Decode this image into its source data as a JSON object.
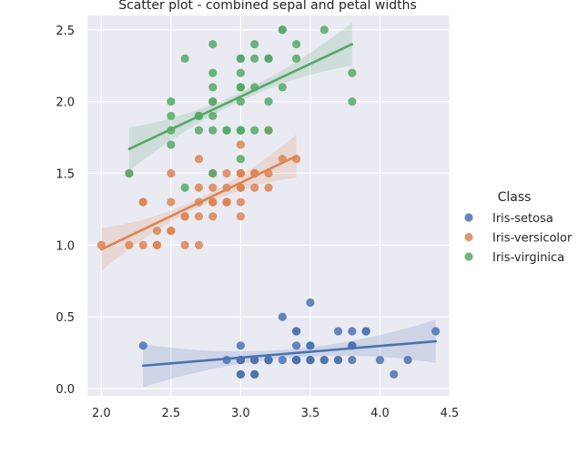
{
  "chart_data": {
    "type": "scatter",
    "title": "Scatter plot - combined sepal and petal widths",
    "xlabel": "",
    "ylabel": "",
    "xlim": [
      1.9,
      4.5
    ],
    "ylim": [
      -0.05,
      2.6
    ],
    "xticks": [
      "2.0",
      "2.5",
      "3.0",
      "3.5",
      "4.0",
      "4.5"
    ],
    "yticks": [
      "0.0",
      "0.5",
      "1.0",
      "1.5",
      "2.0",
      "2.5"
    ],
    "grid": true,
    "legend": {
      "title": "Class",
      "position": "right"
    },
    "series": [
      {
        "name": "Iris-setosa",
        "color": "#4c72b0",
        "points": [
          [
            3.5,
            0.2
          ],
          [
            3.0,
            0.2
          ],
          [
            3.2,
            0.2
          ],
          [
            3.1,
            0.2
          ],
          [
            3.6,
            0.2
          ],
          [
            3.9,
            0.4
          ],
          [
            3.4,
            0.3
          ],
          [
            3.4,
            0.2
          ],
          [
            2.9,
            0.2
          ],
          [
            3.1,
            0.1
          ],
          [
            3.7,
            0.2
          ],
          [
            3.4,
            0.2
          ],
          [
            3.0,
            0.1
          ],
          [
            3.0,
            0.1
          ],
          [
            4.0,
            0.2
          ],
          [
            4.4,
            0.4
          ],
          [
            3.9,
            0.4
          ],
          [
            3.5,
            0.3
          ],
          [
            3.8,
            0.3
          ],
          [
            3.8,
            0.3
          ],
          [
            3.4,
            0.2
          ],
          [
            3.7,
            0.4
          ],
          [
            3.6,
            0.2
          ],
          [
            3.3,
            0.5
          ],
          [
            3.4,
            0.2
          ],
          [
            3.0,
            0.2
          ],
          [
            3.4,
            0.4
          ],
          [
            3.5,
            0.2
          ],
          [
            3.4,
            0.2
          ],
          [
            3.2,
            0.2
          ],
          [
            3.1,
            0.2
          ],
          [
            3.4,
            0.4
          ],
          [
            4.1,
            0.1
          ],
          [
            4.2,
            0.2
          ],
          [
            3.1,
            0.1
          ],
          [
            3.2,
            0.2
          ],
          [
            3.5,
            0.2
          ],
          [
            3.1,
            0.1
          ],
          [
            3.0,
            0.2
          ],
          [
            3.4,
            0.2
          ],
          [
            3.5,
            0.3
          ],
          [
            2.3,
            0.3
          ],
          [
            3.2,
            0.2
          ],
          [
            3.5,
            0.6
          ],
          [
            3.8,
            0.4
          ],
          [
            3.0,
            0.3
          ],
          [
            3.8,
            0.2
          ],
          [
            3.2,
            0.2
          ],
          [
            3.7,
            0.2
          ],
          [
            3.3,
            0.2
          ]
        ],
        "trend": {
          "x": [
            2.3,
            4.4
          ],
          "y": [
            0.16,
            0.33
          ]
        }
      },
      {
        "name": "Iris-versicolor",
        "color": "#dd8452",
        "points": [
          [
            3.2,
            1.4
          ],
          [
            3.2,
            1.5
          ],
          [
            3.1,
            1.5
          ],
          [
            2.3,
            1.3
          ],
          [
            2.8,
            1.5
          ],
          [
            2.8,
            1.3
          ],
          [
            3.3,
            1.6
          ],
          [
            2.4,
            1.0
          ],
          [
            2.9,
            1.3
          ],
          [
            2.7,
            1.4
          ],
          [
            2.0,
            1.0
          ],
          [
            3.0,
            1.5
          ],
          [
            2.2,
            1.0
          ],
          [
            2.9,
            1.4
          ],
          [
            2.9,
            1.3
          ],
          [
            3.1,
            1.4
          ],
          [
            3.0,
            1.5
          ],
          [
            2.7,
            1.0
          ],
          [
            2.2,
            1.5
          ],
          [
            2.5,
            1.1
          ],
          [
            3.2,
            1.8
          ],
          [
            2.8,
            1.3
          ],
          [
            2.5,
            1.5
          ],
          [
            2.8,
            1.2
          ],
          [
            2.9,
            1.3
          ],
          [
            3.0,
            1.4
          ],
          [
            2.8,
            1.4
          ],
          [
            3.0,
            1.7
          ],
          [
            2.9,
            1.5
          ],
          [
            2.6,
            1.0
          ],
          [
            2.4,
            1.1
          ],
          [
            2.4,
            1.0
          ],
          [
            2.7,
            1.2
          ],
          [
            2.7,
            1.6
          ],
          [
            3.0,
            1.5
          ],
          [
            3.4,
            1.6
          ],
          [
            3.1,
            1.5
          ],
          [
            2.3,
            1.3
          ],
          [
            3.0,
            1.3
          ],
          [
            2.5,
            1.3
          ],
          [
            2.6,
            1.2
          ],
          [
            3.0,
            1.4
          ],
          [
            2.6,
            1.2
          ],
          [
            2.3,
            1.0
          ],
          [
            2.7,
            1.3
          ],
          [
            3.0,
            1.2
          ],
          [
            2.9,
            1.3
          ],
          [
            2.9,
            1.3
          ],
          [
            2.5,
            1.1
          ],
          [
            2.8,
            1.3
          ]
        ],
        "trend": {
          "x": [
            2.0,
            3.4
          ],
          "y": [
            0.97,
            1.62
          ]
        }
      },
      {
        "name": "Iris-virginica",
        "color": "#55a868",
        "points": [
          [
            3.3,
            2.5
          ],
          [
            2.7,
            1.9
          ],
          [
            3.0,
            2.1
          ],
          [
            2.9,
            1.8
          ],
          [
            3.0,
            2.2
          ],
          [
            3.0,
            2.1
          ],
          [
            2.5,
            1.7
          ],
          [
            2.9,
            1.8
          ],
          [
            2.5,
            1.8
          ],
          [
            3.6,
            2.5
          ],
          [
            3.2,
            2.0
          ],
          [
            2.7,
            1.9
          ],
          [
            3.0,
            2.1
          ],
          [
            2.5,
            2.0
          ],
          [
            2.8,
            2.4
          ],
          [
            3.2,
            2.3
          ],
          [
            3.0,
            1.8
          ],
          [
            3.8,
            2.2
          ],
          [
            2.6,
            2.3
          ],
          [
            2.2,
            1.5
          ],
          [
            3.2,
            2.3
          ],
          [
            2.8,
            2.0
          ],
          [
            2.8,
            2.0
          ],
          [
            2.7,
            1.8
          ],
          [
            3.3,
            2.1
          ],
          [
            3.2,
            1.8
          ],
          [
            2.8,
            1.8
          ],
          [
            3.0,
            1.8
          ],
          [
            2.8,
            2.1
          ],
          [
            3.0,
            1.6
          ],
          [
            2.8,
            1.9
          ],
          [
            3.8,
            2.0
          ],
          [
            2.8,
            2.2
          ],
          [
            2.8,
            1.5
          ],
          [
            2.6,
            1.4
          ],
          [
            3.0,
            2.3
          ],
          [
            3.4,
            2.4
          ],
          [
            3.1,
            1.8
          ],
          [
            3.0,
            1.8
          ],
          [
            3.1,
            2.1
          ],
          [
            3.1,
            2.4
          ],
          [
            3.1,
            2.3
          ],
          [
            2.7,
            1.9
          ],
          [
            3.2,
            2.3
          ],
          [
            3.3,
            2.5
          ],
          [
            3.0,
            2.3
          ],
          [
            2.5,
            1.9
          ],
          [
            3.0,
            2.0
          ],
          [
            3.4,
            2.3
          ],
          [
            3.0,
            1.8
          ]
        ],
        "trend": {
          "x": [
            2.2,
            3.8
          ],
          "y": [
            1.67,
            2.4
          ]
        }
      }
    ]
  }
}
